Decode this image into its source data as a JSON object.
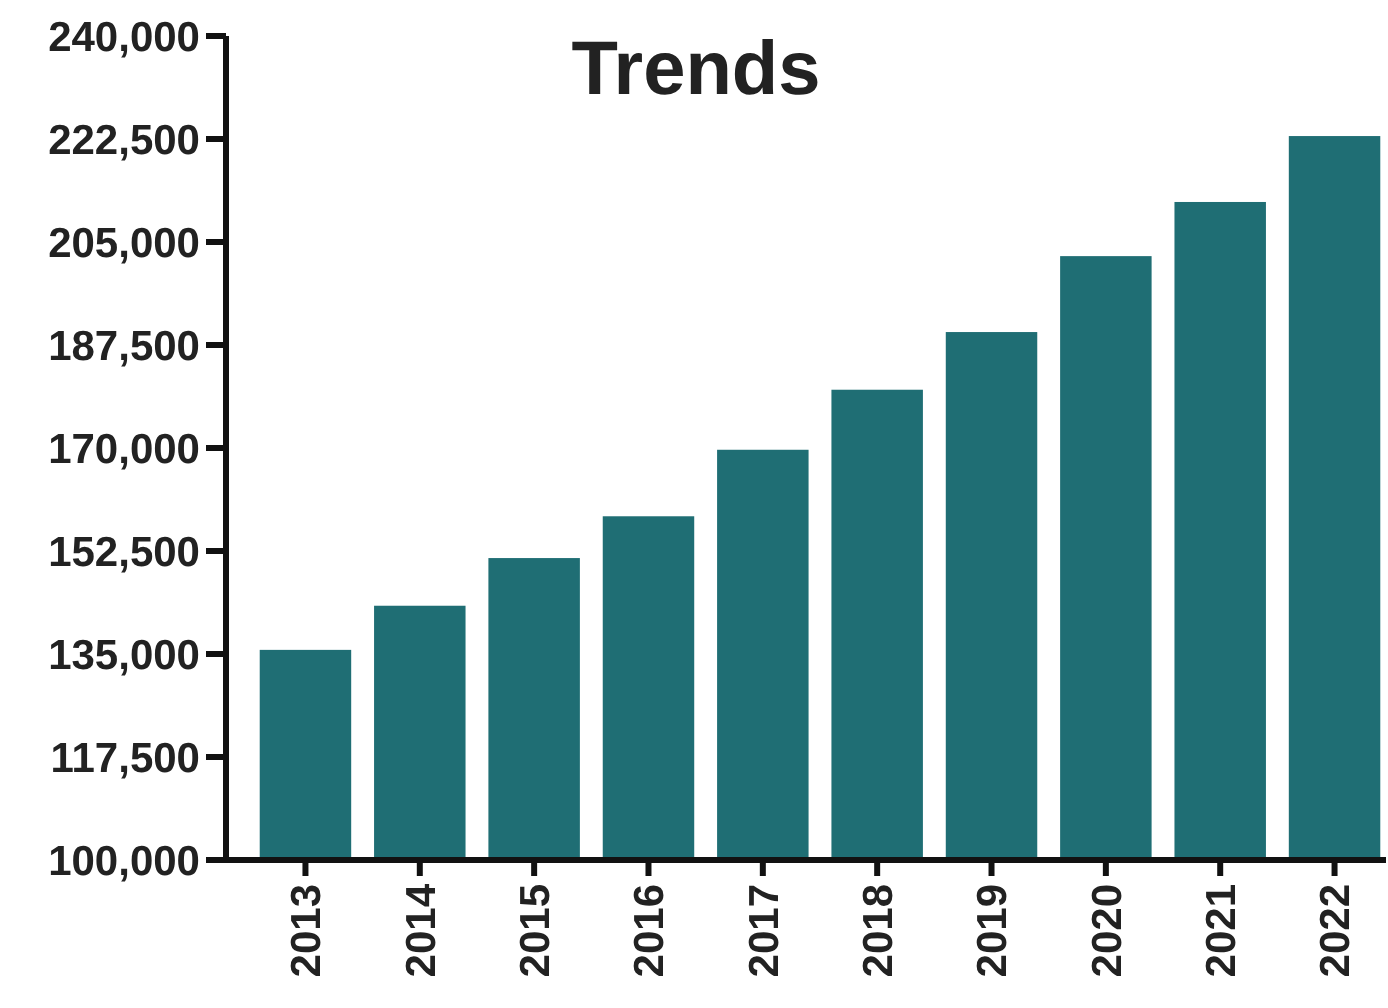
{
  "chart_data": {
    "type": "bar",
    "title": "Trends",
    "categories": [
      "2013",
      "2014",
      "2015",
      "2016",
      "2017",
      "2018",
      "2019",
      "2020",
      "2021",
      "2022"
    ],
    "series": [
      {
        "color": "#1f6e74",
        "values": [
          135700,
          143200,
          151300,
          158400,
          169700,
          179900,
          189700,
          202600,
          211800,
          223000
        ]
      }
    ],
    "ylim": [
      100000,
      240000
    ],
    "yticks": [
      {
        "value": 100000,
        "label": "100,000"
      },
      {
        "value": 117500,
        "label": "117,500"
      },
      {
        "value": 135000,
        "label": "135,000"
      },
      {
        "value": 152500,
        "label": "152,500"
      },
      {
        "value": 170000,
        "label": "170,000"
      },
      {
        "value": 187500,
        "label": "187,500"
      },
      {
        "value": 205000,
        "label": "205,000"
      },
      {
        "value": 222500,
        "label": "222,500"
      },
      {
        "value": 240000,
        "label": "240,000"
      }
    ],
    "grid": false
  }
}
